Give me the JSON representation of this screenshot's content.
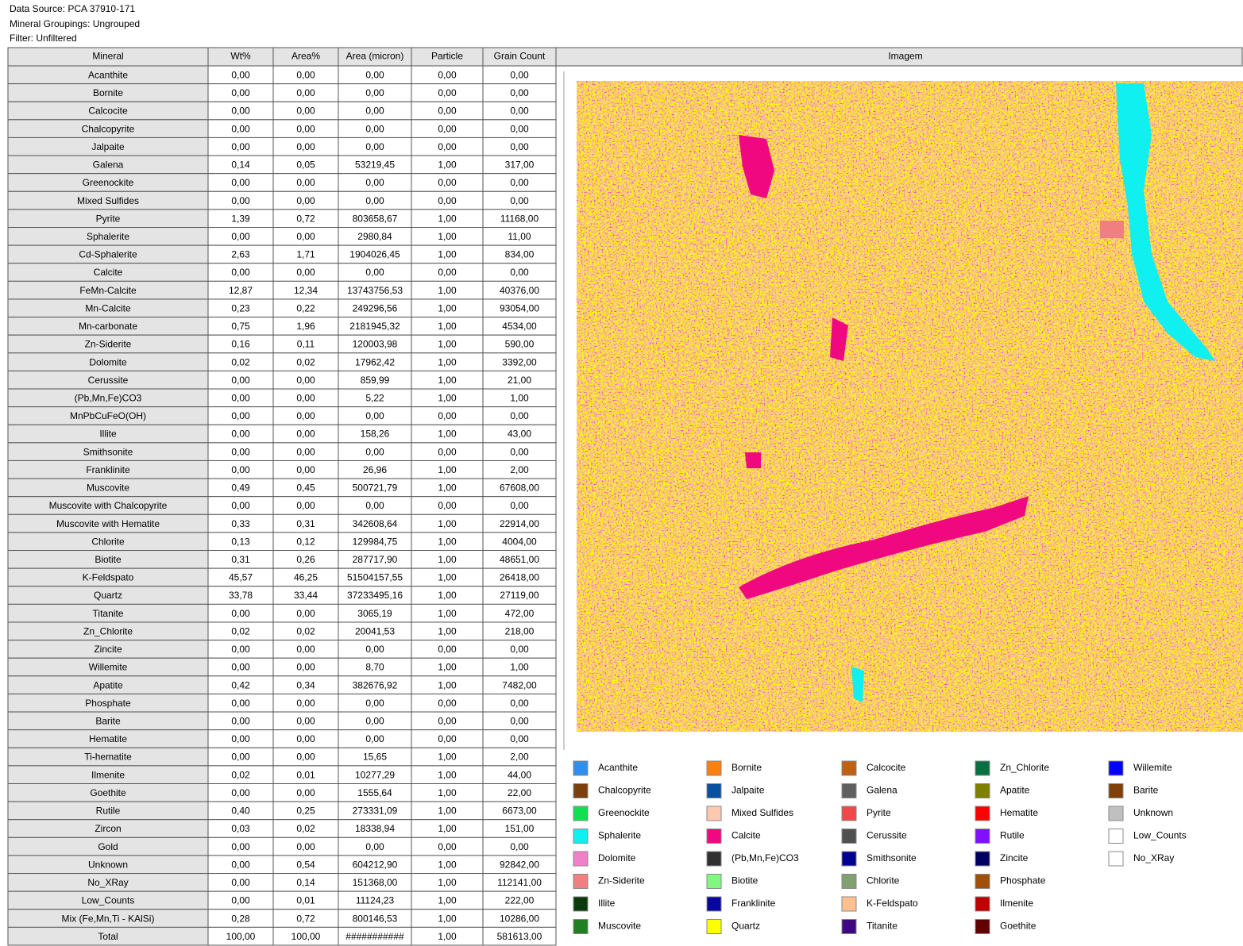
{
  "header": {
    "data_source": "Data Source: PCA 37910-171",
    "groupings": "Mineral Groupings: Ungrouped",
    "filter": "Filter: Unfiltered"
  },
  "table": {
    "columns": [
      "Mineral",
      "Wt%",
      "Area%",
      "Area (micron)",
      "Particle",
      "Grain Count"
    ],
    "image_header": "Imagem",
    "rows": [
      [
        "Acanthite",
        "0,00",
        "0,00",
        "0,00",
        "0,00",
        "0,00"
      ],
      [
        "Bornite",
        "0,00",
        "0,00",
        "0,00",
        "0,00",
        "0,00"
      ],
      [
        "Calcocite",
        "0,00",
        "0,00",
        "0,00",
        "0,00",
        "0,00"
      ],
      [
        "Chalcopyrite",
        "0,00",
        "0,00",
        "0,00",
        "0,00",
        "0,00"
      ],
      [
        "Jalpaite",
        "0,00",
        "0,00",
        "0,00",
        "0,00",
        "0,00"
      ],
      [
        "Galena",
        "0,14",
        "0,05",
        "53219,45",
        "1,00",
        "317,00"
      ],
      [
        "Greenockite",
        "0,00",
        "0,00",
        "0,00",
        "0,00",
        "0,00"
      ],
      [
        "Mixed Sulfides",
        "0,00",
        "0,00",
        "0,00",
        "0,00",
        "0,00"
      ],
      [
        "Pyrite",
        "1,39",
        "0,72",
        "803658,67",
        "1,00",
        "11168,00"
      ],
      [
        "Sphalerite",
        "0,00",
        "0,00",
        "2980,84",
        "1,00",
        "11,00"
      ],
      [
        "Cd-Sphalerite",
        "2,63",
        "1,71",
        "1904026,45",
        "1,00",
        "834,00"
      ],
      [
        "Calcite",
        "0,00",
        "0,00",
        "0,00",
        "0,00",
        "0,00"
      ],
      [
        "FeMn-Calcite",
        "12,87",
        "12,34",
        "13743756,53",
        "1,00",
        "40376,00"
      ],
      [
        "Mn-Calcite",
        "0,23",
        "0,22",
        "249296,56",
        "1,00",
        "93054,00"
      ],
      [
        "Mn-carbonate",
        "0,75",
        "1,96",
        "2181945,32",
        "1,00",
        "4534,00"
      ],
      [
        "Zn-Siderite",
        "0,16",
        "0,11",
        "120003,98",
        "1,00",
        "590,00"
      ],
      [
        "Dolomite",
        "0,02",
        "0,02",
        "17962,42",
        "1,00",
        "3392,00"
      ],
      [
        "Cerussite",
        "0,00",
        "0,00",
        "859,99",
        "1,00",
        "21,00"
      ],
      [
        "(Pb,Mn,Fe)CO3",
        "0,00",
        "0,00",
        "5,22",
        "1,00",
        "1,00"
      ],
      [
        "MnPbCuFeO(OH)",
        "0,00",
        "0,00",
        "0,00",
        "0,00",
        "0,00"
      ],
      [
        "Illite",
        "0,00",
        "0,00",
        "158,26",
        "1,00",
        "43,00"
      ],
      [
        "Smithsonite",
        "0,00",
        "0,00",
        "0,00",
        "0,00",
        "0,00"
      ],
      [
        "Franklinite",
        "0,00",
        "0,00",
        "26,96",
        "1,00",
        "2,00"
      ],
      [
        "Muscovite",
        "0,49",
        "0,45",
        "500721,79",
        "1,00",
        "67608,00"
      ],
      [
        "Muscovite with Chalcopyrite",
        "0,00",
        "0,00",
        "0,00",
        "0,00",
        "0,00"
      ],
      [
        "Muscovite with Hematite",
        "0,33",
        "0,31",
        "342608,64",
        "1,00",
        "22914,00"
      ],
      [
        "Chlorite",
        "0,13",
        "0,12",
        "129984,75",
        "1,00",
        "4004,00"
      ],
      [
        "Biotite",
        "0,31",
        "0,26",
        "287717,90",
        "1,00",
        "48651,00"
      ],
      [
        "K-Feldspato",
        "45,57",
        "46,25",
        "51504157,55",
        "1,00",
        "26418,00"
      ],
      [
        "Quartz",
        "33,78",
        "33,44",
        "37233495,16",
        "1,00",
        "27119,00"
      ],
      [
        "Titanite",
        "0,00",
        "0,00",
        "3065,19",
        "1,00",
        "472,00"
      ],
      [
        "Zn_Chlorite",
        "0,02",
        "0,02",
        "20041,53",
        "1,00",
        "218,00"
      ],
      [
        "Zincite",
        "0,00",
        "0,00",
        "0,00",
        "0,00",
        "0,00"
      ],
      [
        "Willemite",
        "0,00",
        "0,00",
        "8,70",
        "1,00",
        "1,00"
      ],
      [
        "Apatite",
        "0,42",
        "0,34",
        "382676,92",
        "1,00",
        "7482,00"
      ],
      [
        "Phosphate",
        "0,00",
        "0,00",
        "0,00",
        "0,00",
        "0,00"
      ],
      [
        "Barite",
        "0,00",
        "0,00",
        "0,00",
        "0,00",
        "0,00"
      ],
      [
        "Hematite",
        "0,00",
        "0,00",
        "0,00",
        "0,00",
        "0,00"
      ],
      [
        "Ti-hematite",
        "0,00",
        "0,00",
        "15,65",
        "1,00",
        "2,00"
      ],
      [
        "Ilmenite",
        "0,02",
        "0,01",
        "10277,29",
        "1,00",
        "44,00"
      ],
      [
        "Goethite",
        "0,00",
        "0,00",
        "1555,64",
        "1,00",
        "22,00"
      ],
      [
        "Rutile",
        "0,40",
        "0,25",
        "273331,09",
        "1,00",
        "6673,00"
      ],
      [
        "Zircon",
        "0,03",
        "0,02",
        "18338,94",
        "1,00",
        "151,00"
      ],
      [
        "Gold",
        "0,00",
        "0,00",
        "0,00",
        "0,00",
        "0,00"
      ],
      [
        "Unknown",
        "0,00",
        "0,54",
        "604212,90",
        "1,00",
        "92842,00"
      ],
      [
        "No_XRay",
        "0,00",
        "0,14",
        "151368,00",
        "1,00",
        "112141,00"
      ],
      [
        "Low_Counts",
        "0,00",
        "0,01",
        "11124,23",
        "1,00",
        "222,00"
      ],
      [
        "Mix (Fe,Mn,Ti - KAlSi)",
        "0,28",
        "0,72",
        "800146,53",
        "1,00",
        "10286,00"
      ],
      [
        "Total",
        "100,00",
        "100,00",
        "###########",
        "1,00",
        "581613,00"
      ]
    ]
  },
  "legend": [
    [
      {
        "label": "Acanthite",
        "color": "#2f8fef"
      },
      {
        "label": "Chalcopyrite",
        "color": "#7a3f0a"
      },
      {
        "label": "Greenockite",
        "color": "#10e050"
      },
      {
        "label": "Sphalerite",
        "color": "#10f0f0"
      },
      {
        "label": "Dolomite",
        "color": "#f080c8"
      },
      {
        "label": "Zn-Siderite",
        "color": "#f08080"
      },
      {
        "label": "Illite",
        "color": "#0a3a0a"
      },
      {
        "label": "Muscovite",
        "color": "#208020"
      }
    ],
    [
      {
        "label": "Bornite",
        "color": "#ff8010"
      },
      {
        "label": "Jalpaite",
        "color": "#0850a0"
      },
      {
        "label": "Mixed Sulfides",
        "color": "#ffc8b0"
      },
      {
        "label": "Calcite",
        "color": "#f00880"
      },
      {
        "label": "(Pb,Mn,Fe)CO3",
        "color": "#303030"
      },
      {
        "label": "Biotite",
        "color": "#80f880"
      },
      {
        "label": "Franklinite",
        "color": "#0808a0"
      },
      {
        "label": "Quartz",
        "color": "#ffff00"
      }
    ],
    [
      {
        "label": "Calcocite",
        "color": "#c06010"
      },
      {
        "label": "Galena",
        "color": "#606060"
      },
      {
        "label": "Pyrite",
        "color": "#f04848"
      },
      {
        "label": "Cerussite",
        "color": "#505050"
      },
      {
        "label": "Smithsonite",
        "color": "#000090"
      },
      {
        "label": "Chlorite",
        "color": "#80a070"
      },
      {
        "label": "K-Feldspato",
        "color": "#ffc090"
      },
      {
        "label": "Titanite",
        "color": "#400880"
      }
    ],
    [
      {
        "label": "Zn_Chlorite",
        "color": "#087040"
      },
      {
        "label": "Apatite",
        "color": "#808000"
      },
      {
        "label": "Hematite",
        "color": "#ff0000"
      },
      {
        "label": "Rutile",
        "color": "#8010ff"
      },
      {
        "label": "Zincite",
        "color": "#000060"
      },
      {
        "label": "Phosphate",
        "color": "#a05008"
      },
      {
        "label": "Ilmenite",
        "color": "#c00000"
      },
      {
        "label": "Goethite",
        "color": "#600000"
      }
    ],
    [
      {
        "label": "Willemite",
        "color": "#0000ff"
      },
      {
        "label": "Barite",
        "color": "#804008"
      },
      {
        "label": "Unknown",
        "color": "#c0c0c0"
      },
      {
        "label": "Low_Counts",
        "color": "#ffffff"
      },
      {
        "label": "No_XRay",
        "color": "#ffffff"
      }
    ]
  ]
}
